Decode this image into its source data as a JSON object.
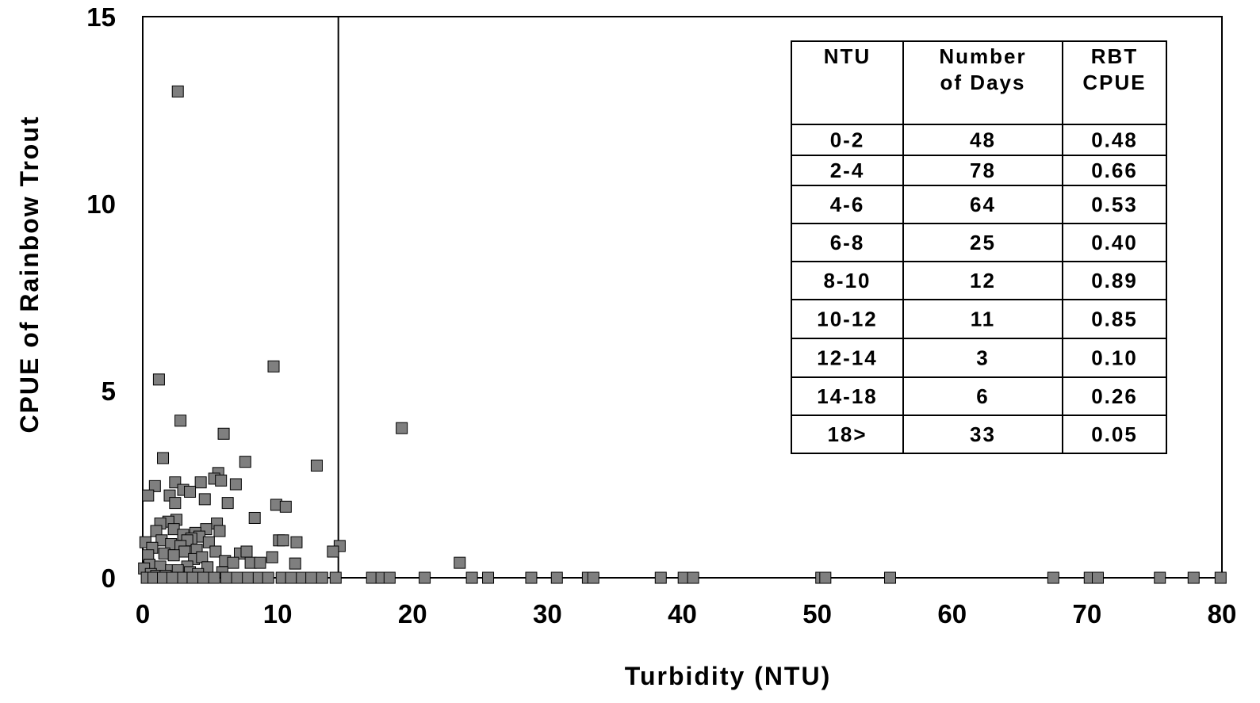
{
  "chart_data": {
    "type": "scatter",
    "title": "",
    "xlabel": "Turbidity (NTU)",
    "ylabel": "CPUE of Rainbow Trout",
    "xlim": [
      0,
      80
    ],
    "ylim": [
      0,
      15
    ],
    "x_ticks": [
      "0",
      "10",
      "20",
      "30",
      "40",
      "50",
      "60",
      "70",
      "80"
    ],
    "y_ticks": [
      "0",
      "5",
      "10",
      "15"
    ],
    "grid": false,
    "marker": {
      "shape": "square",
      "fill": "#7f7f7f",
      "stroke": "#000000"
    },
    "reference_line": {
      "x": 14.5
    },
    "points": [
      [
        2.6,
        13.0
      ],
      [
        1.2,
        5.3
      ],
      [
        9.7,
        5.65
      ],
      [
        2.8,
        4.2
      ],
      [
        6.0,
        3.85
      ],
      [
        19.2,
        4.0
      ],
      [
        1.5,
        3.2
      ],
      [
        7.6,
        3.1
      ],
      [
        12.9,
        3.0
      ],
      [
        5.6,
        2.8
      ],
      [
        5.3,
        2.65
      ],
      [
        5.8,
        2.6
      ],
      [
        4.3,
        2.55
      ],
      [
        2.4,
        2.55
      ],
      [
        6.9,
        2.5
      ],
      [
        0.9,
        2.45
      ],
      [
        3.0,
        2.35
      ],
      [
        3.5,
        2.3
      ],
      [
        0.4,
        2.2
      ],
      [
        2.0,
        2.2
      ],
      [
        4.6,
        2.1
      ],
      [
        2.4,
        2.0
      ],
      [
        6.3,
        2.0
      ],
      [
        9.9,
        1.95
      ],
      [
        10.6,
        1.9
      ],
      [
        8.3,
        1.6
      ],
      [
        2.5,
        1.55
      ],
      [
        1.9,
        1.5
      ],
      [
        1.3,
        1.45
      ],
      [
        5.5,
        1.45
      ],
      [
        4.7,
        1.3
      ],
      [
        2.3,
        1.3
      ],
      [
        1.0,
        1.25
      ],
      [
        3.9,
        1.2
      ],
      [
        5.7,
        1.25
      ],
      [
        3.0,
        1.15
      ],
      [
        4.2,
        1.1
      ],
      [
        3.6,
        1.05
      ],
      [
        1.4,
        1.0
      ],
      [
        3.3,
        1.0
      ],
      [
        4.9,
        0.95
      ],
      [
        0.2,
        0.95
      ],
      [
        10.1,
        1.0
      ],
      [
        10.4,
        1.0
      ],
      [
        11.4,
        0.95
      ],
      [
        2.1,
        0.9
      ],
      [
        2.8,
        0.85
      ],
      [
        0.7,
        0.8
      ],
      [
        4.0,
        0.75
      ],
      [
        14.6,
        0.85
      ],
      [
        14.1,
        0.7
      ],
      [
        3.1,
        0.7
      ],
      [
        5.4,
        0.7
      ],
      [
        7.2,
        0.65
      ],
      [
        7.7,
        0.7
      ],
      [
        1.6,
        0.65
      ],
      [
        2.3,
        0.6
      ],
      [
        0.4,
        0.6
      ],
      [
        9.6,
        0.55
      ],
      [
        3.8,
        0.5
      ],
      [
        4.4,
        0.55
      ],
      [
        6.1,
        0.45
      ],
      [
        6.7,
        0.4
      ],
      [
        8.0,
        0.4
      ],
      [
        8.7,
        0.4
      ],
      [
        11.3,
        0.38
      ],
      [
        23.5,
        0.4
      ],
      [
        0.5,
        0.35
      ],
      [
        1.3,
        0.3
      ],
      [
        3.3,
        0.3
      ],
      [
        4.8,
        0.28
      ],
      [
        0.1,
        0.25
      ],
      [
        2.1,
        0.2
      ],
      [
        2.6,
        0.2
      ],
      [
        5.9,
        0.15
      ],
      [
        3.5,
        0.15
      ],
      [
        0.6,
        0.1
      ],
      [
        1.0,
        0.05
      ],
      [
        1.7,
        0.05
      ],
      [
        4.1,
        0.1
      ],
      [
        0.3,
        0.0
      ],
      [
        0.8,
        0.0
      ],
      [
        1.5,
        0.0
      ],
      [
        2.2,
        0.0
      ],
      [
        3.0,
        0.0
      ],
      [
        3.7,
        0.0
      ],
      [
        4.5,
        0.0
      ],
      [
        5.3,
        0.0
      ],
      [
        6.2,
        0.0
      ],
      [
        7.0,
        0.0
      ],
      [
        7.8,
        0.0
      ],
      [
        8.6,
        0.0
      ],
      [
        9.3,
        0.0
      ],
      [
        10.3,
        0.0
      ],
      [
        11.0,
        0.0
      ],
      [
        11.8,
        0.0
      ],
      [
        12.5,
        0.0
      ],
      [
        13.3,
        0.0
      ],
      [
        14.3,
        0.0
      ],
      [
        17.0,
        0.0
      ],
      [
        17.7,
        0.0
      ],
      [
        18.3,
        0.0
      ],
      [
        20.9,
        0.0
      ],
      [
        24.4,
        0.0
      ],
      [
        25.6,
        0.0
      ],
      [
        28.8,
        0.0
      ],
      [
        30.7,
        0.0
      ],
      [
        33.0,
        0.0
      ],
      [
        33.4,
        0.0
      ],
      [
        38.4,
        0.0
      ],
      [
        40.1,
        0.0
      ],
      [
        40.8,
        0.0
      ],
      [
        50.3,
        0.0
      ],
      [
        50.6,
        0.0
      ],
      [
        55.4,
        0.0
      ],
      [
        67.5,
        0.0
      ],
      [
        70.2,
        0.0
      ],
      [
        70.8,
        0.0
      ],
      [
        75.4,
        0.0
      ],
      [
        77.9,
        0.0
      ],
      [
        79.9,
        0.0
      ]
    ],
    "table": {
      "headers": [
        [
          "NTU"
        ],
        [
          "Number",
          "of Days"
        ],
        [
          "RBT",
          "CPUE"
        ]
      ],
      "rows": [
        [
          "0-2",
          "48",
          "0.48"
        ],
        [
          "2-4",
          "78",
          "0.66"
        ],
        [
          "4-6",
          "64",
          "0.53"
        ],
        [
          "6-8",
          "25",
          "0.40"
        ],
        [
          "8-10",
          "12",
          "0.89"
        ],
        [
          "10-12",
          "11",
          "0.85"
        ],
        [
          "12-14",
          "3",
          "0.10"
        ],
        [
          "14-18",
          "6",
          "0.26"
        ],
        [
          "18>",
          "33",
          "0.05"
        ]
      ]
    }
  }
}
